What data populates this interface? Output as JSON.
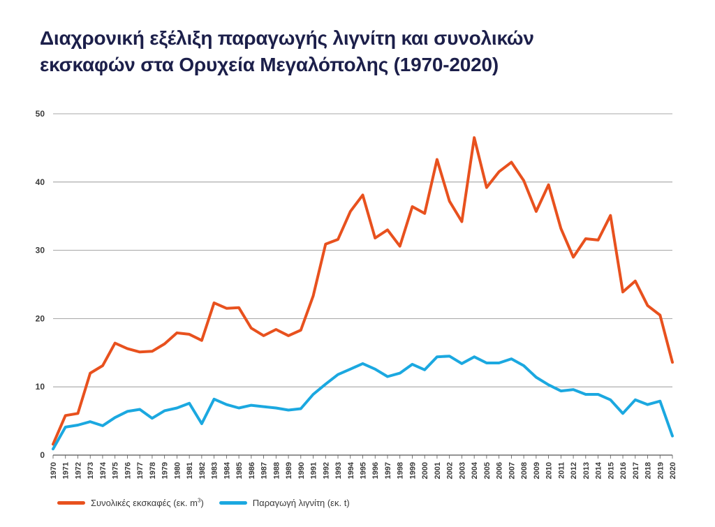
{
  "title_line1": "Διαχρονική εξέλιξη παραγωγής λιγνίτη και συνολικών",
  "title_line2": "εκσκαφών στα Ορυχεία Μεγαλόπολης (1970-2020)",
  "colors": {
    "excavations": "#e8511e",
    "production": "#1ba8e0",
    "grid": "#8a8a8a",
    "text": "#1c1f4a"
  },
  "chart_data": {
    "type": "line",
    "title": "Διαχρονική εξέλιξη παραγωγής λιγνίτη και συνολικών εκσκαφών στα Ορυχεία Μεγαλόπολης (1970-2020)",
    "xlabel": "",
    "ylabel": "",
    "ylim": [
      0,
      50
    ],
    "yticks": [
      0,
      10,
      20,
      30,
      40,
      50
    ],
    "grid": true,
    "legend_position": "bottom-left",
    "x": [
      "1970",
      "1971",
      "1972",
      "1973",
      "1974",
      "1975",
      "1976",
      "1977",
      "1978",
      "1979",
      "1980",
      "1981",
      "1982",
      "1983",
      "1984",
      "1985",
      "1986",
      "1987",
      "1988",
      "1989",
      "1990",
      "1991",
      "1992",
      "1993",
      "1994",
      "1995",
      "1996",
      "1997",
      "1998",
      "1999",
      "2000",
      "2001",
      "2002",
      "2003",
      "2004",
      "2005",
      "2006",
      "2007",
      "2008",
      "2009",
      "2010",
      "2011",
      "2012",
      "2013",
      "2014",
      "2015",
      "2016",
      "2017",
      "2018",
      "2019",
      "2020"
    ],
    "series": [
      {
        "name": "Συνολικές εκσκαφές (εκ. m",
        "name_sup": "3",
        "name_tail": ")",
        "color": "#e8511e",
        "values": [
          1.6,
          5.8,
          6.1,
          12.0,
          13.1,
          16.4,
          15.6,
          15.1,
          15.2,
          16.3,
          17.9,
          17.7,
          16.8,
          22.3,
          21.5,
          21.6,
          18.6,
          17.5,
          18.4,
          17.5,
          18.3,
          23.3,
          30.9,
          31.6,
          35.7,
          38.1,
          31.8,
          33.0,
          30.6,
          36.4,
          35.4,
          43.3,
          37.2,
          34.2,
          46.5,
          39.2,
          41.5,
          42.9,
          40.2,
          35.7,
          39.6,
          33.2,
          29.0,
          31.7,
          31.5,
          35.1,
          23.9,
          25.5,
          21.9,
          20.5,
          13.6
        ]
      },
      {
        "name": "Παραγωγή λιγνίτη (εκ. t)",
        "color": "#1ba8e0",
        "values": [
          0.9,
          4.1,
          4.4,
          4.9,
          4.3,
          5.5,
          6.4,
          6.7,
          5.4,
          6.5,
          6.9,
          7.6,
          4.6,
          8.2,
          7.4,
          6.9,
          7.3,
          7.1,
          6.9,
          6.6,
          6.8,
          8.9,
          10.4,
          11.8,
          12.6,
          13.4,
          12.6,
          11.5,
          12.0,
          13.3,
          12.5,
          14.4,
          14.5,
          13.4,
          14.4,
          13.5,
          13.5,
          14.1,
          13.1,
          11.4,
          10.3,
          9.4,
          9.6,
          8.9,
          8.9,
          8.1,
          6.1,
          8.1,
          7.4,
          7.9,
          2.8
        ]
      }
    ]
  }
}
